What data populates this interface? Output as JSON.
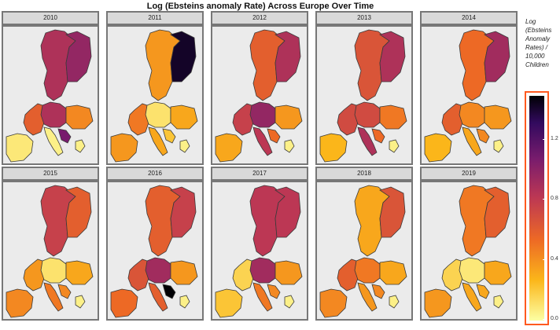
{
  "title": "Log (Ebsteins anomaly Rate) Across Europe Over Time",
  "legend": {
    "title": "Log (Ebsteins Anomaly Rates) / 10,000 Children",
    "ticks": [
      "0.0",
      "0.4",
      "0.8",
      "1.2"
    ],
    "tick_values": [
      0.0,
      0.4,
      0.8,
      1.2
    ],
    "range": [
      0.0,
      1.5
    ],
    "palette": [
      "#fcffa4",
      "#fbb61a",
      "#ed6925",
      "#bc3754",
      "#781c6d",
      "#320a5e",
      "#000004"
    ]
  },
  "panels": [
    {
      "year": "2010",
      "values": {
        "scand": 0.8,
        "finland": 0.9,
        "uk": 0.55,
        "central": 0.8,
        "east": 0.4,
        "iberia": 0.08,
        "italy": 0.05,
        "greece": 0.05,
        "balkan": 1.0
      }
    },
    {
      "year": "2011",
      "values": {
        "scand": 0.35,
        "finland": 1.4,
        "uk": 0.45,
        "central": 0.1,
        "east": 0.3,
        "iberia": 0.35,
        "italy": 0.3,
        "greece": 0.05,
        "balkan": 0.2
      }
    },
    {
      "year": "2012",
      "values": {
        "scand": 0.55,
        "finland": 0.8,
        "uk": 0.7,
        "central": 0.9,
        "east": 0.35,
        "iberia": 0.3,
        "italy": 0.75,
        "greece": 0.05,
        "balkan": 0.5
      }
    },
    {
      "year": "2013",
      "values": {
        "scand": 0.6,
        "finland": 0.8,
        "uk": 0.65,
        "central": 0.65,
        "east": 0.45,
        "iberia": 0.25,
        "italy": 0.8,
        "greece": 0.05,
        "balkan": 0.5
      }
    },
    {
      "year": "2014",
      "values": {
        "scand": 0.5,
        "finland": 0.85,
        "uk": 0.55,
        "central": 0.4,
        "east": 0.35,
        "iberia": 0.25,
        "italy": 0.3,
        "greece": 0.05,
        "balkan": 0.4
      }
    },
    {
      "year": "2015",
      "values": {
        "scand": 0.7,
        "finland": 0.55,
        "uk": 0.35,
        "central": 0.1,
        "east": 0.3,
        "iberia": 0.4,
        "italy": 0.45,
        "greece": 0.05,
        "balkan": 0.4
      }
    },
    {
      "year": "2016",
      "values": {
        "scand": 0.55,
        "finland": 0.7,
        "uk": 0.6,
        "central": 0.85,
        "east": 0.35,
        "iberia": 0.5,
        "italy": 0.55,
        "greece": 0.05,
        "balkan": 1.5
      }
    },
    {
      "year": "2017",
      "values": {
        "scand": 0.75,
        "finland": 0.75,
        "uk": 0.15,
        "central": 0.85,
        "east": 0.35,
        "iberia": 0.2,
        "italy": 0.45,
        "greece": 0.05,
        "balkan": 0.4
      }
    },
    {
      "year": "2018",
      "values": {
        "scand": 0.3,
        "finland": 0.6,
        "uk": 0.55,
        "central": 0.45,
        "east": 0.3,
        "iberia": 0.4,
        "italy": 0.35,
        "greece": 0.05,
        "balkan": 0.4
      }
    },
    {
      "year": "2019",
      "values": {
        "scand": 0.45,
        "finland": 0.55,
        "uk": 0.15,
        "central": 0.08,
        "east": 0.3,
        "iberia": 0.35,
        "italy": 0.3,
        "greece": 0.05,
        "balkan": 0.3
      }
    }
  ]
}
